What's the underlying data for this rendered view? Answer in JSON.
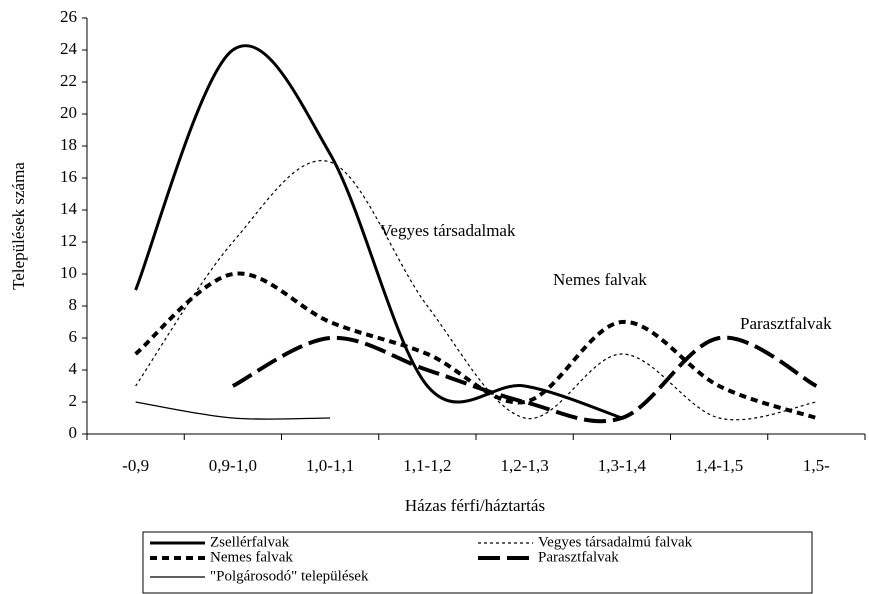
{
  "chart_data": {
    "type": "line",
    "y_label": "Települések száma",
    "x_label": "Házas férfi/háztartás",
    "categories": [
      "-0,9",
      "0,9-1,0",
      "1,0-1,1",
      "1,1-1,2",
      "1,2-1,3",
      "1,3-1,4",
      "1,4-1,5",
      "1,5-"
    ],
    "series": [
      {
        "name": "Zsellérfalvak",
        "color": "#000000",
        "style": "solid-thick",
        "values": [
          9,
          24,
          17.5,
          3,
          3,
          1,
          null,
          null
        ]
      },
      {
        "name": "Vegyes társadalmú falvak",
        "color": "#000000",
        "style": "dotted-thin",
        "values": [
          3,
          12,
          17,
          8,
          1,
          5,
          1,
          2
        ]
      },
      {
        "name": "Nemes falvak",
        "color": "#000000",
        "style": "short-dash",
        "values": [
          5,
          10,
          7,
          5,
          2,
          7,
          3,
          1
        ]
      },
      {
        "name": "Parasztfalvak",
        "color": "#000000",
        "style": "long-dash",
        "values": [
          null,
          3,
          6,
          4,
          2,
          1,
          6,
          3
        ]
      },
      {
        "name": "\"Polgárosodó\" települések",
        "color": "#000000",
        "style": "solid-thin",
        "values": [
          2,
          1,
          1,
          null,
          null,
          null,
          null,
          null
        ]
      }
    ],
    "annotations": [
      "Vegyes társadalmak",
      "Nemes falvak",
      "Parasztfalvak"
    ],
    "ylim": [
      0,
      26
    ],
    "yticks": [
      0,
      2,
      4,
      6,
      8,
      10,
      12,
      14,
      16,
      18,
      20,
      22,
      24,
      26
    ],
    "grid": false,
    "legend": "bottom"
  }
}
